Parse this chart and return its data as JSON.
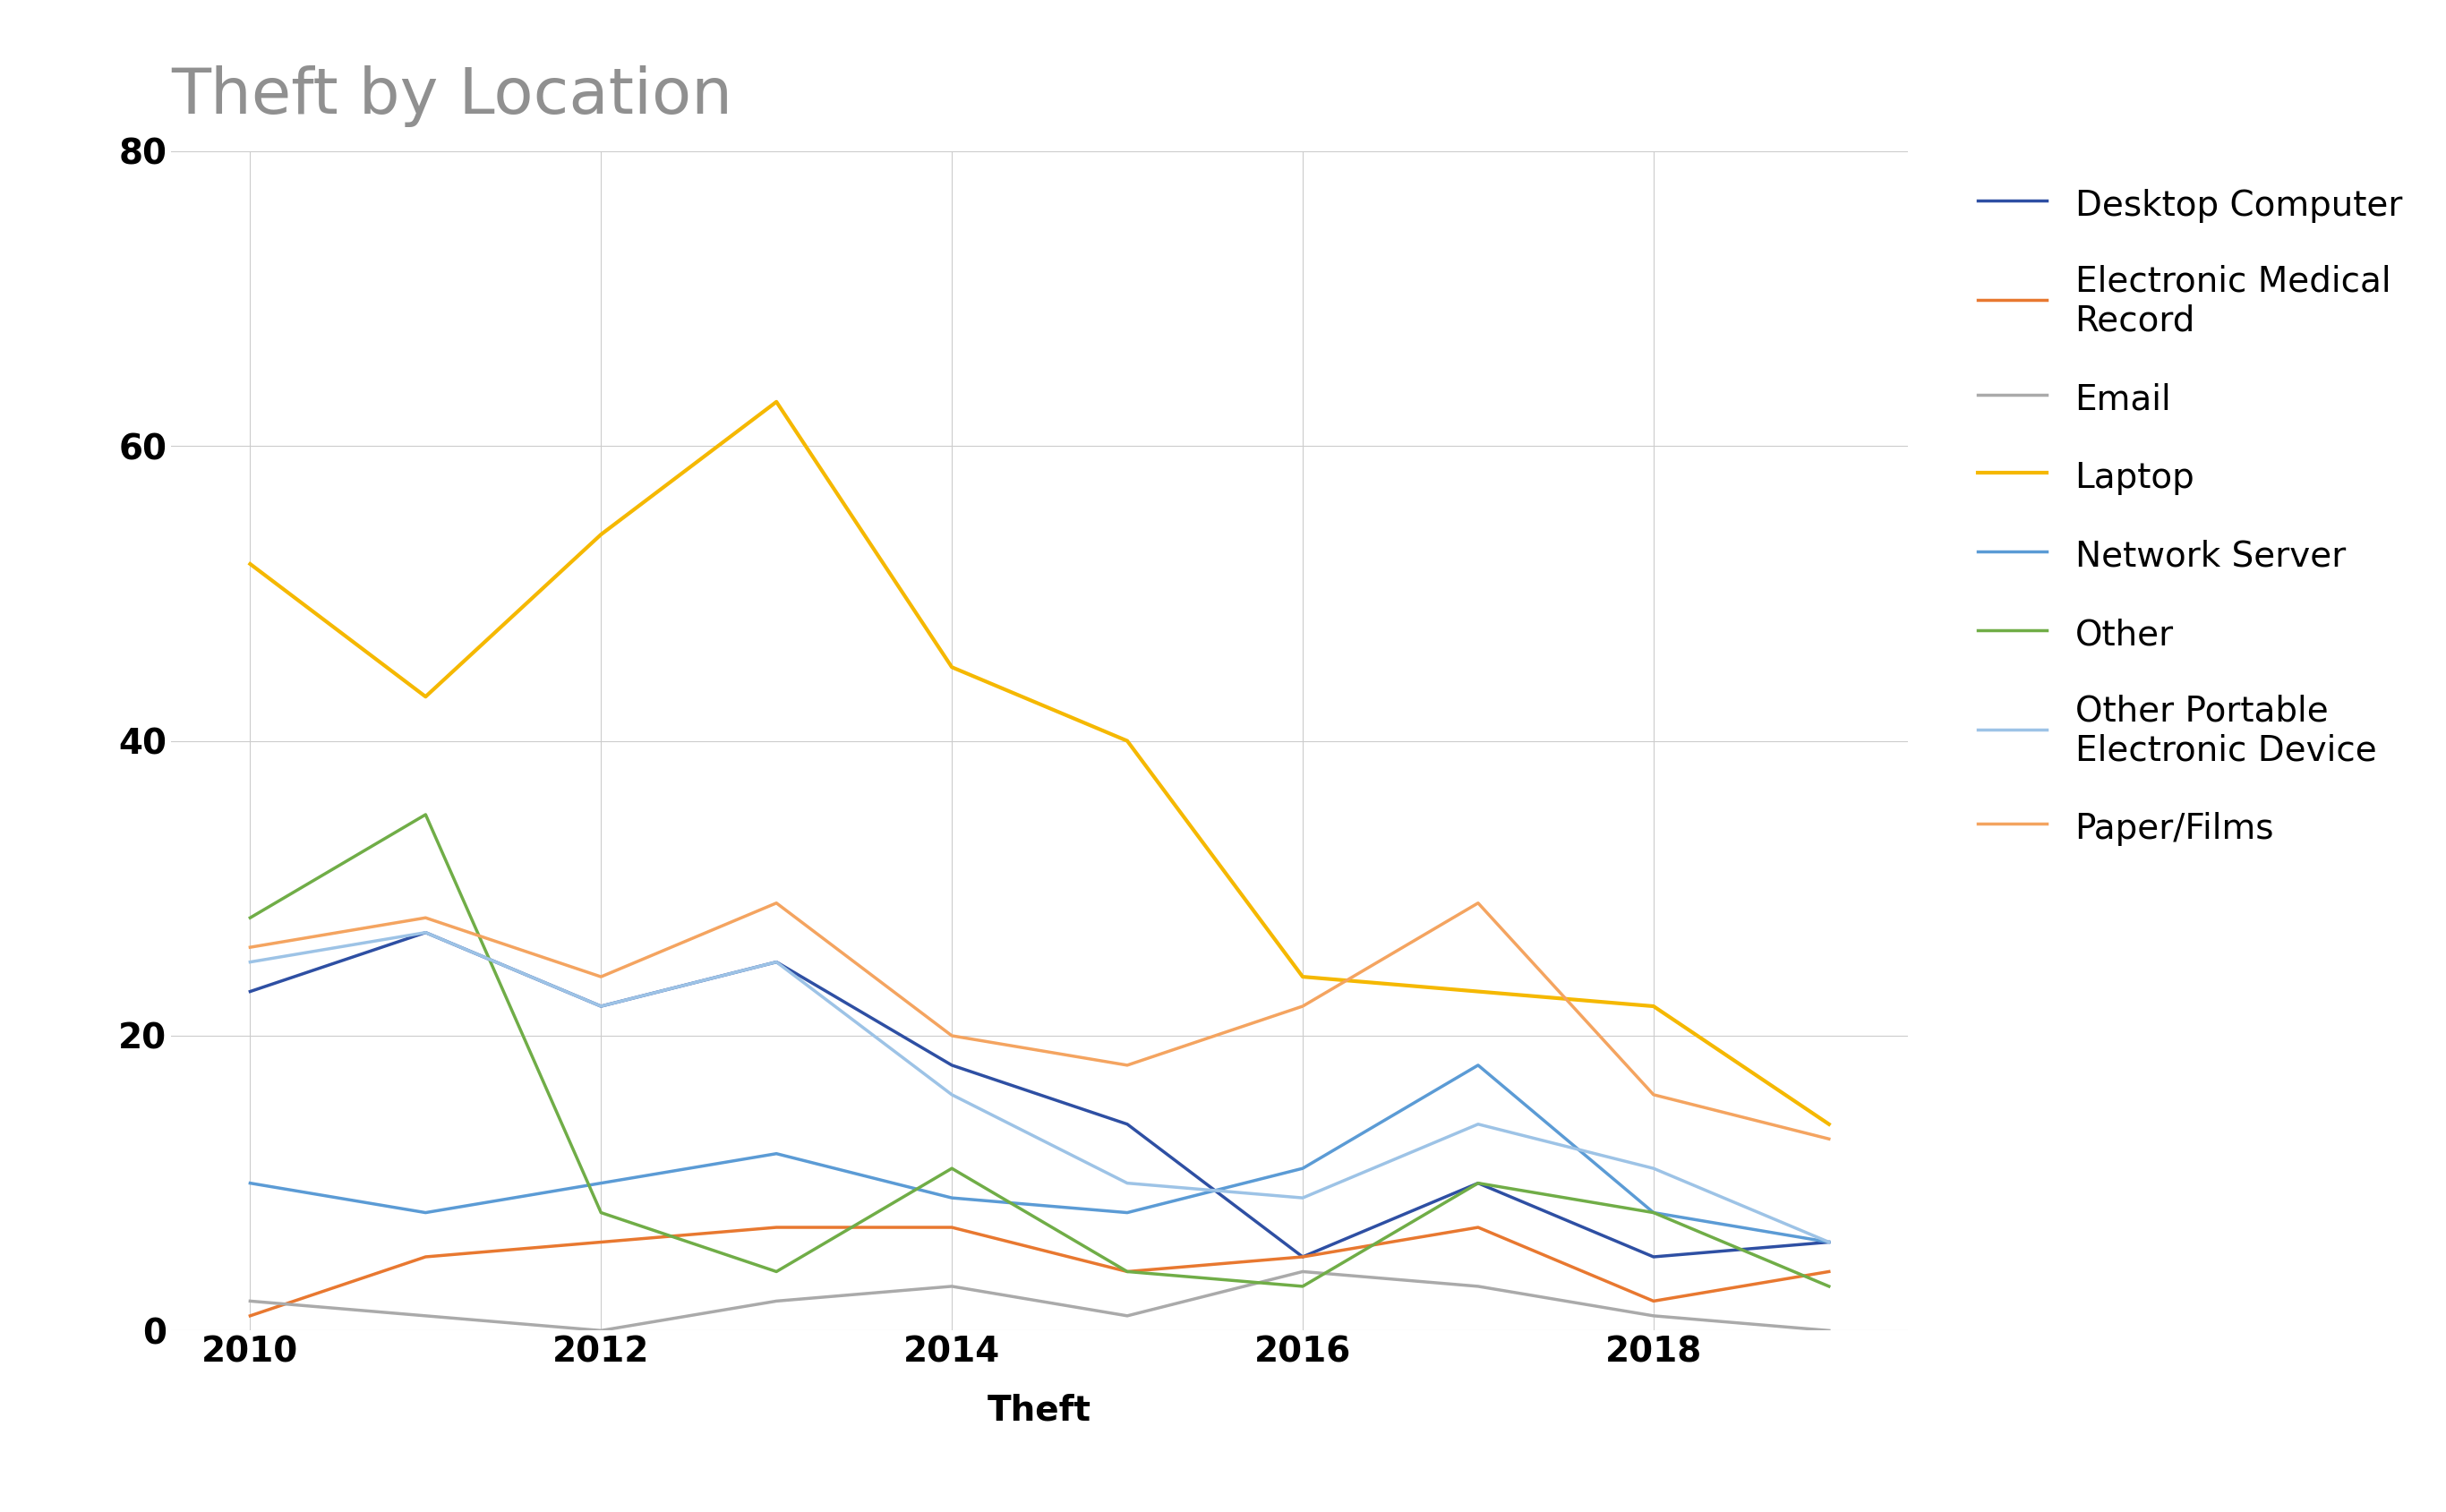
{
  "title": "Theft by Location",
  "xlabel": "Theft",
  "ylabel": "",
  "years": [
    2010,
    2011,
    2012,
    2013,
    2014,
    2015,
    2016,
    2017,
    2018,
    2019
  ],
  "xtick_years": [
    2010,
    2012,
    2014,
    2016,
    2018
  ],
  "series": {
    "Desktop Computer": {
      "values": [
        23,
        27,
        22,
        25,
        18,
        14,
        5,
        10,
        5,
        6
      ],
      "color": "#2E4FA3",
      "linewidth": 2.5
    },
    "Electronic Medical\nRecord": {
      "values": [
        1,
        5,
        6,
        7,
        7,
        4,
        5,
        7,
        2,
        4
      ],
      "color": "#E87830",
      "linewidth": 2.5
    },
    "Email": {
      "values": [
        2,
        1,
        0,
        2,
        3,
        1,
        4,
        3,
        1,
        0
      ],
      "color": "#AAAAAA",
      "linewidth": 2.5
    },
    "Laptop": {
      "values": [
        52,
        43,
        54,
        63,
        45,
        40,
        24,
        23,
        22,
        14
      ],
      "color": "#F5B800",
      "linewidth": 3.0
    },
    "Network Server": {
      "values": [
        10,
        8,
        10,
        12,
        9,
        8,
        11,
        18,
        8,
        6
      ],
      "color": "#5B9BD5",
      "linewidth": 2.5
    },
    "Other": {
      "values": [
        28,
        35,
        8,
        4,
        11,
        4,
        3,
        10,
        8,
        3
      ],
      "color": "#70AD47",
      "linewidth": 2.5
    },
    "Other Portable\nElectronic Device": {
      "values": [
        25,
        27,
        22,
        25,
        16,
        10,
        9,
        14,
        11,
        6
      ],
      "color": "#9DC3E6",
      "linewidth": 2.5
    },
    "Paper/Films": {
      "values": [
        26,
        28,
        24,
        29,
        20,
        18,
        22,
        29,
        16,
        13
      ],
      "color": "#F4A460",
      "linewidth": 2.5
    }
  },
  "ylim": [
    0,
    80
  ],
  "yticks": [
    0,
    20,
    40,
    60,
    80
  ],
  "background_color": "#FFFFFF",
  "title_color": "#909090",
  "title_fontsize": 52,
  "label_fontsize": 28,
  "tick_fontsize": 28,
  "legend_fontsize": 28,
  "grid_color": "#CCCCCC"
}
